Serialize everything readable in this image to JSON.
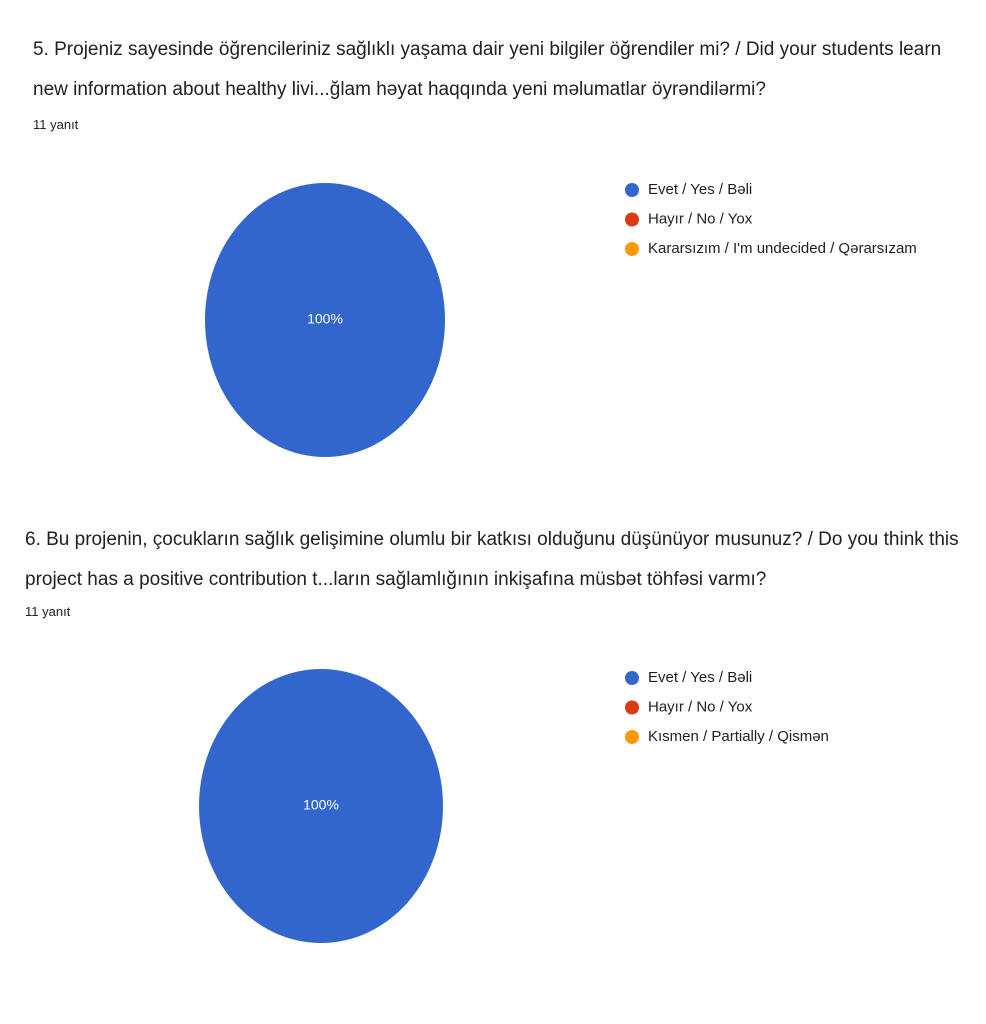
{
  "chart_data": [
    {
      "type": "pie",
      "title": "5. Projeniz sayesinde öğrencileriniz sağlıklı yaşama dair yeni bilgiler öğrendiler mi? / Did your students learn new information about healthy livi...ğlam həyat haqqında yeni məlumatlar öyrəndilərmi?",
      "subtitle": "11 yanıt",
      "categories": [
        "Evet / Yes / Bəli",
        "Hayır / No / Yox",
        "Kararsızım / I'm undecided / Qərarsızam"
      ],
      "values": [
        100,
        0,
        0
      ],
      "value_labels": [
        "100%",
        null,
        null
      ],
      "colors": [
        "#3366cc",
        "#dc3912",
        "#ff9900"
      ]
    },
    {
      "type": "pie",
      "title": "6. Bu projenin, çocukların sağlık gelişimine olumlu bir katkısı olduğunu düşünüyor musunuz? / Do you think this project has a positive contribution t...ların sağlamlığının inkişafına müsbət töhfəsi varmı?",
      "subtitle": "11 yanıt",
      "categories": [
        "Evet / Yes / Bəli",
        "Hayır / No / Yox",
        "Kısmen / Partially / Qismən"
      ],
      "values": [
        100,
        0,
        0
      ],
      "value_labels": [
        "100%",
        null,
        null
      ],
      "colors": [
        "#3366cc",
        "#dc3912",
        "#ff9900"
      ]
    }
  ]
}
